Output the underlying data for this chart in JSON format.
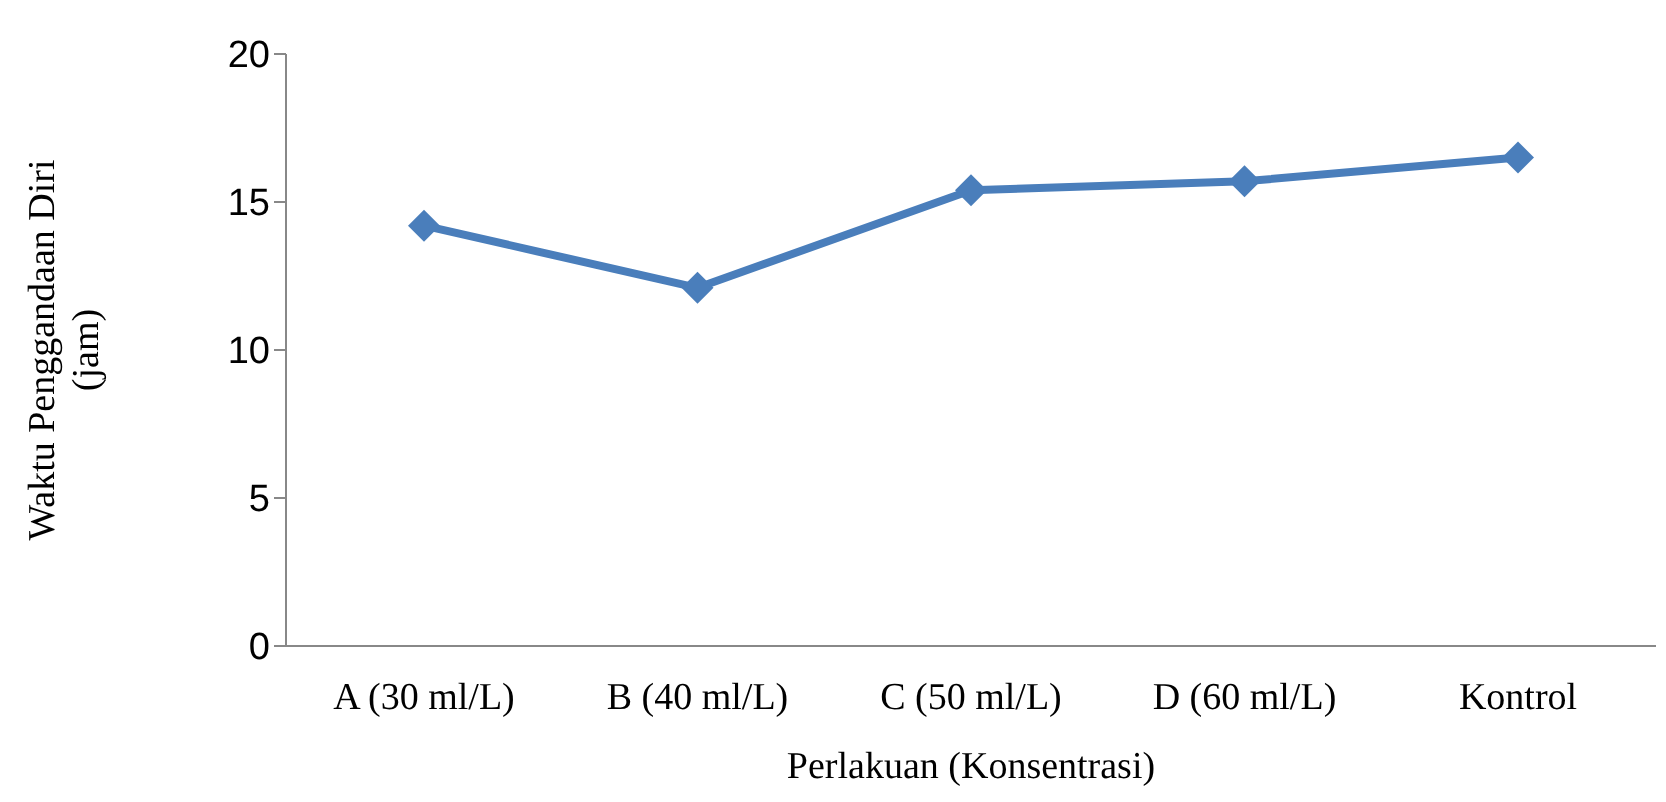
{
  "chart_data": {
    "type": "line",
    "xlabel": "Perlakuan (Konsentrasi)",
    "ylabel": "Waktu Penggandaan Diri (jam)",
    "categories": [
      "A (30 ml/L)",
      "B (40 ml/L)",
      "C (50 ml/L)",
      "D (60 ml/L)",
      "Kontrol"
    ],
    "series": [
      {
        "color": "#4a7ebb",
        "values": [
          14.2,
          12.1,
          15.4,
          15.7,
          16.5
        ]
      }
    ],
    "ylim": [
      0,
      20
    ],
    "yticks": [
      0,
      5,
      10,
      15,
      20
    ],
    "grid": false,
    "legend": false,
    "marker": "diamond",
    "line_style": "solid"
  }
}
